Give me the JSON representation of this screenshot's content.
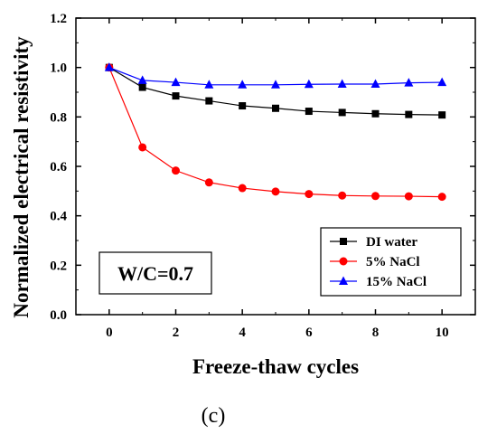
{
  "chart_data": {
    "type": "line",
    "title": "",
    "xlabel": "Freeze-thaw cycles",
    "ylabel": "Normalized electrical resistivity",
    "xlim": [
      -1,
      11
    ],
    "ylim": [
      0.0,
      1.2
    ],
    "x_ticks": [
      0,
      2,
      4,
      6,
      8,
      10
    ],
    "y_ticks": [
      0.0,
      0.2,
      0.4,
      0.6,
      0.8,
      1.0,
      1.2
    ],
    "x_tick_labels": [
      "0",
      "2",
      "4",
      "6",
      "8",
      "10"
    ],
    "y_tick_labels": [
      "0.0",
      "0.2",
      "0.4",
      "0.6",
      "0.8",
      "1.0",
      "1.2"
    ],
    "x": [
      0,
      1,
      2,
      3,
      4,
      5,
      6,
      7,
      8,
      9,
      10
    ],
    "series": [
      {
        "name": "DI water",
        "color": "#000000",
        "marker": "square",
        "values": [
          1.0,
          0.92,
          0.885,
          0.865,
          0.845,
          0.835,
          0.823,
          0.818,
          0.813,
          0.81,
          0.808
        ]
      },
      {
        "name": "5% NaCl",
        "color": "#ff0000",
        "marker": "circle",
        "values": [
          1.0,
          0.677,
          0.583,
          0.535,
          0.512,
          0.498,
          0.488,
          0.482,
          0.48,
          0.479,
          0.477
        ]
      },
      {
        "name": "15% NaCl",
        "color": "#0000ff",
        "marker": "triangle",
        "values": [
          1.0,
          0.948,
          0.94,
          0.93,
          0.93,
          0.93,
          0.932,
          0.933,
          0.933,
          0.938,
          0.94
        ]
      }
    ],
    "legend_position": "bottom-right",
    "grid": false,
    "annotation": "W/C=0.7",
    "panel_label": "(c)"
  }
}
